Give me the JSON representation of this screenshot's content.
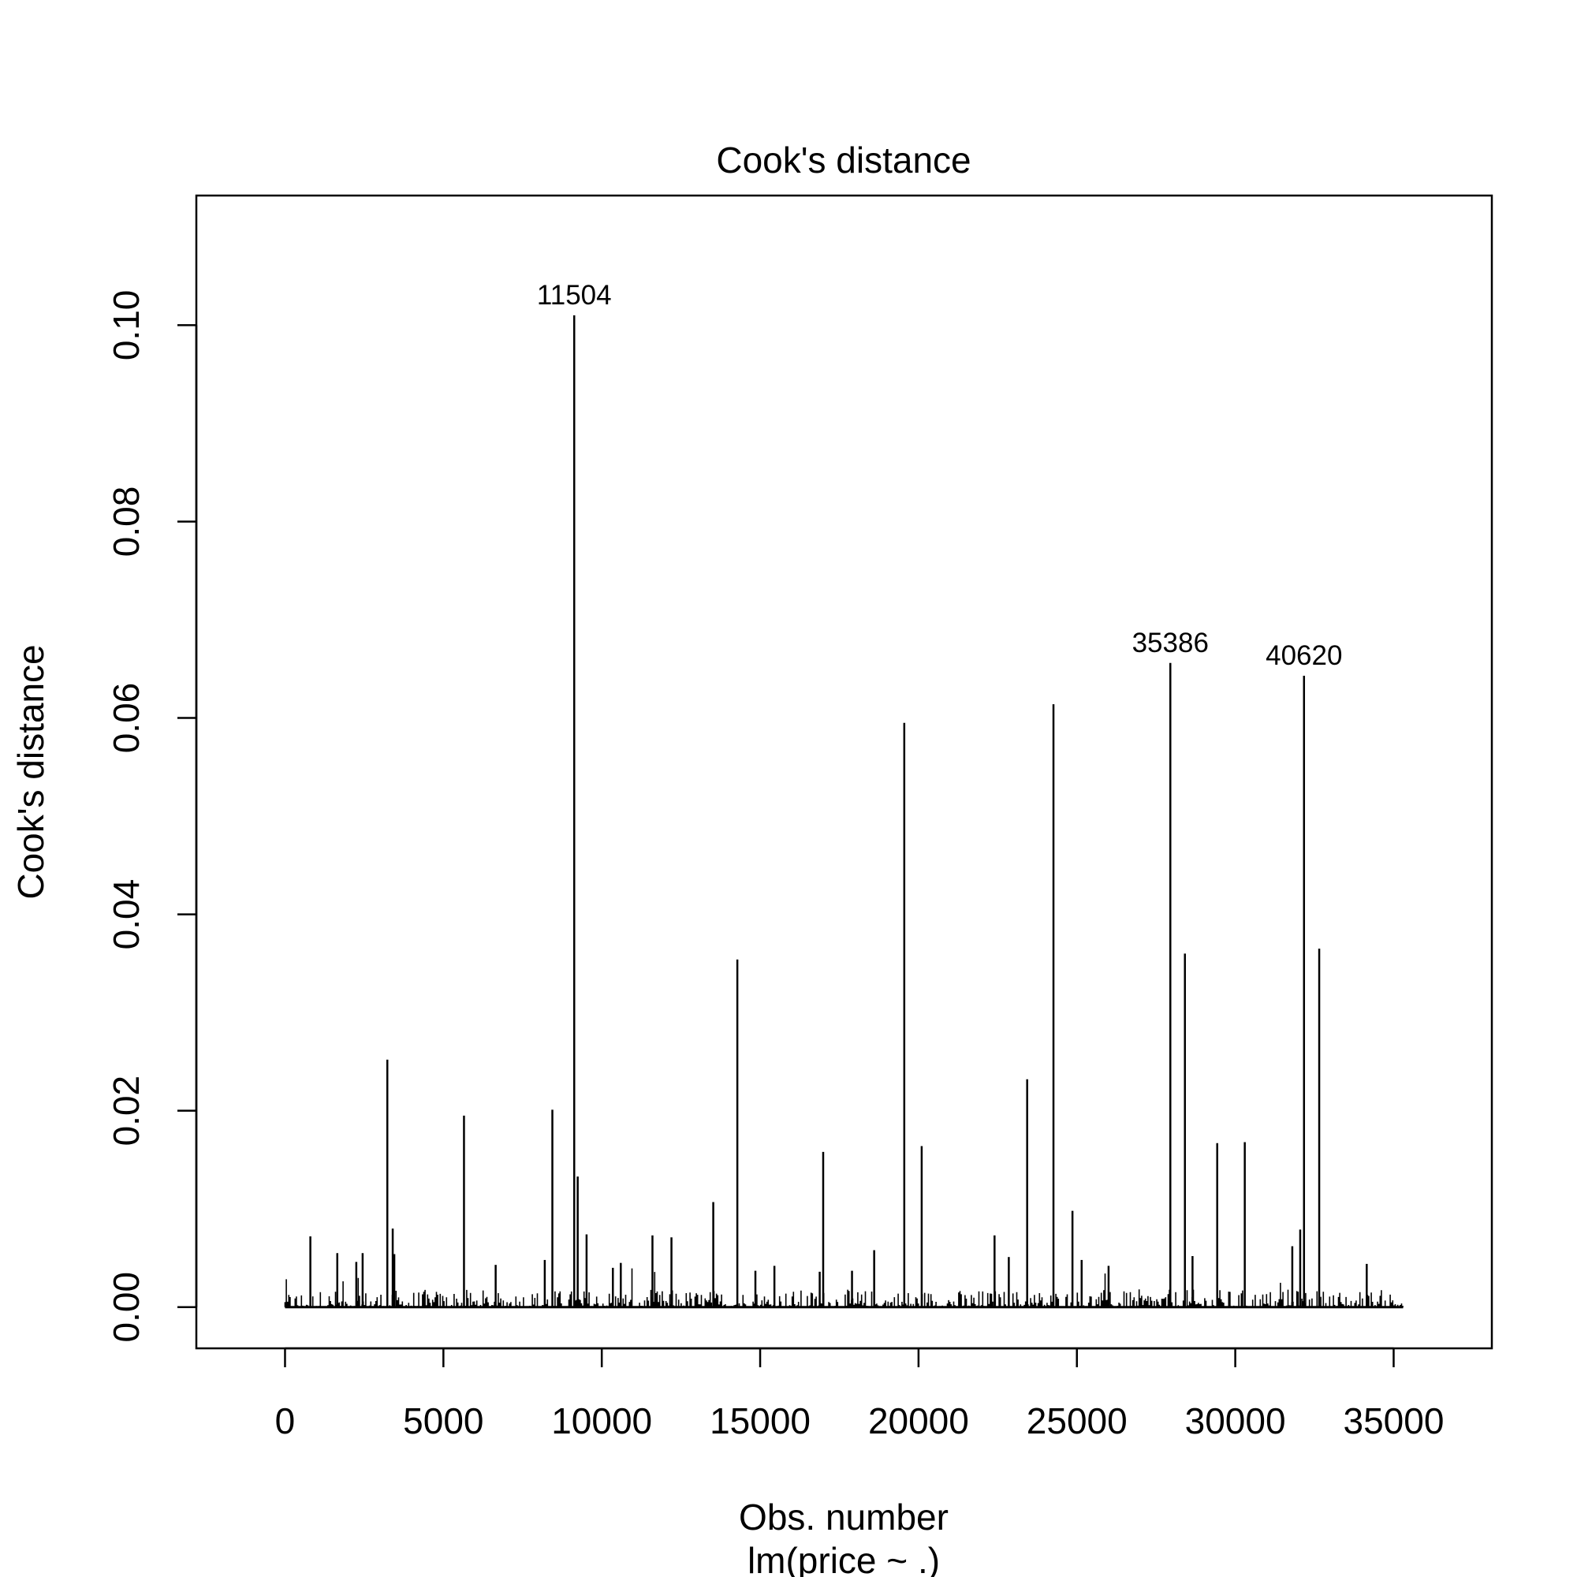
{
  "chart_data": {
    "type": "bar",
    "title": "Cook's distance",
    "xlabel": "Obs. number",
    "sublabel": "lm(price ~ .)",
    "ylabel": "Cook's distance",
    "xlim": [
      -2800,
      38100
    ],
    "ylim": [
      -0.0042,
      0.1132
    ],
    "x_ticks": [
      0,
      5000,
      10000,
      15000,
      20000,
      25000,
      30000,
      35000
    ],
    "x_tick_labels": [
      "0",
      "5000",
      "10000",
      "15000",
      "20000",
      "25000",
      "30000",
      "35000"
    ],
    "y_ticks": [
      0.0,
      0.02,
      0.04,
      0.06,
      0.08,
      0.1
    ],
    "y_tick_labels": [
      "0.00",
      "0.02",
      "0.04",
      "0.06",
      "0.08",
      "0.10"
    ],
    "n_obs": 35300,
    "labeled_points": [
      {
        "label": "11504",
        "x": 9130,
        "y": 0.101
      },
      {
        "label": "35386",
        "x": 27950,
        "y": 0.0656
      },
      {
        "label": "40620",
        "x": 32170,
        "y": 0.0643
      }
    ],
    "spikes": [
      {
        "x": 800,
        "y": 0.0072
      },
      {
        "x": 1650,
        "y": 0.0055
      },
      {
        "x": 2250,
        "y": 0.0046
      },
      {
        "x": 2450,
        "y": 0.0055
      },
      {
        "x": 3230,
        "y": 0.0252
      },
      {
        "x": 3400,
        "y": 0.008
      },
      {
        "x": 3450,
        "y": 0.0054
      },
      {
        "x": 5650,
        "y": 0.0195
      },
      {
        "x": 6650,
        "y": 0.0043
      },
      {
        "x": 8200,
        "y": 0.0048
      },
      {
        "x": 8440,
        "y": 0.0201
      },
      {
        "x": 9130,
        "y": 0.101
      },
      {
        "x": 9240,
        "y": 0.0133
      },
      {
        "x": 9520,
        "y": 0.0074
      },
      {
        "x": 10350,
        "y": 0.004
      },
      {
        "x": 10600,
        "y": 0.0045
      },
      {
        "x": 11600,
        "y": 0.0073
      },
      {
        "x": 12200,
        "y": 0.0071
      },
      {
        "x": 13520,
        "y": 0.0107
      },
      {
        "x": 14280,
        "y": 0.0354
      },
      {
        "x": 14850,
        "y": 0.0037
      },
      {
        "x": 15450,
        "y": 0.0042
      },
      {
        "x": 16880,
        "y": 0.0036
      },
      {
        "x": 16990,
        "y": 0.0158
      },
      {
        "x": 17900,
        "y": 0.0037
      },
      {
        "x": 18600,
        "y": 0.0058
      },
      {
        "x": 19550,
        "y": 0.0595
      },
      {
        "x": 20100,
        "y": 0.0164
      },
      {
        "x": 22400,
        "y": 0.0073
      },
      {
        "x": 22850,
        "y": 0.0051
      },
      {
        "x": 23430,
        "y": 0.0232
      },
      {
        "x": 24260,
        "y": 0.0614
      },
      {
        "x": 24860,
        "y": 0.0098
      },
      {
        "x": 25150,
        "y": 0.0048
      },
      {
        "x": 26000,
        "y": 0.0042
      },
      {
        "x": 27950,
        "y": 0.0656
      },
      {
        "x": 28410,
        "y": 0.036
      },
      {
        "x": 28650,
        "y": 0.0052
      },
      {
        "x": 29430,
        "y": 0.0167
      },
      {
        "x": 30300,
        "y": 0.0168
      },
      {
        "x": 31800,
        "y": 0.0062
      },
      {
        "x": 32050,
        "y": 0.0079
      },
      {
        "x": 32170,
        "y": 0.0643
      },
      {
        "x": 32650,
        "y": 0.0365
      },
      {
        "x": 34150,
        "y": 0.0044
      }
    ]
  }
}
